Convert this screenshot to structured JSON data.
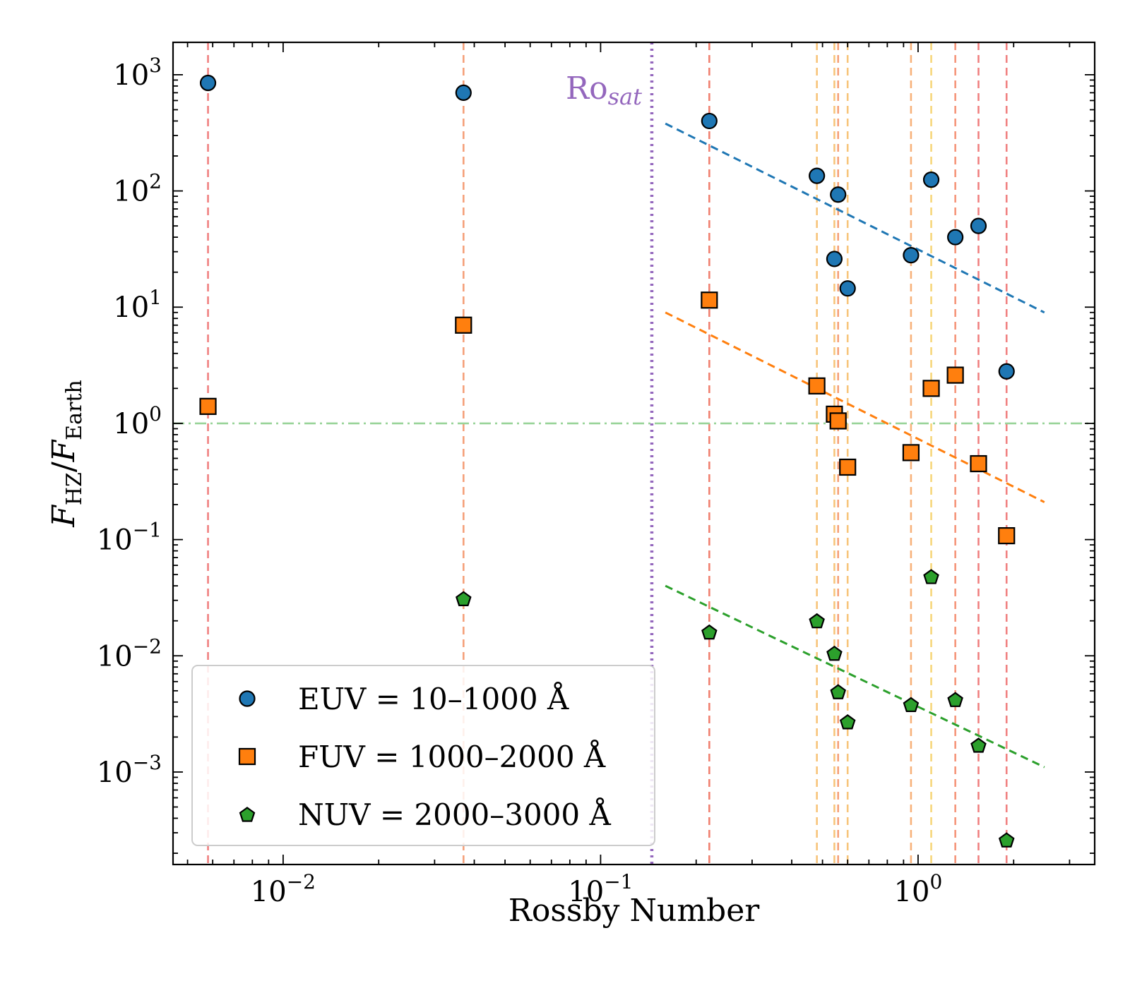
{
  "chart_data": {
    "type": "scatter",
    "xlabel": "Rossby Number",
    "ylabel": {
      "main": "F",
      "sub1": "HZ",
      "sep": "/",
      "main2": "F",
      "sub2": "Earth"
    },
    "xscale": "log",
    "yscale": "log",
    "xlim": [
      0.0045,
      3.6
    ],
    "ylim": [
      0.00016,
      1900
    ],
    "x_ticks": [
      {
        "value": 0.01,
        "base": "10",
        "exp": "−2"
      },
      {
        "value": 0.1,
        "base": "10",
        "exp": "−1"
      },
      {
        "value": 1,
        "base": "10",
        "exp": "0"
      }
    ],
    "y_ticks": [
      {
        "value": 0.001,
        "base": "10",
        "exp": "−3"
      },
      {
        "value": 0.01,
        "base": "10",
        "exp": "−2"
      },
      {
        "value": 0.1,
        "base": "10",
        "exp": "−1"
      },
      {
        "value": 1,
        "base": "10",
        "exp": "0"
      },
      {
        "value": 10,
        "base": "10",
        "exp": "1"
      },
      {
        "value": 100,
        "base": "10",
        "exp": "2"
      },
      {
        "value": 1000,
        "base": "10",
        "exp": "3"
      }
    ],
    "series": [
      {
        "name": "EUV = 10–1000 Å",
        "marker": "circle",
        "color": "#1f77b4",
        "points": [
          [
            0.0058,
            850
          ],
          [
            0.037,
            700
          ],
          [
            0.22,
            400
          ],
          [
            0.48,
            135
          ],
          [
            0.56,
            93
          ],
          [
            0.545,
            26
          ],
          [
            0.6,
            14.5
          ],
          [
            0.95,
            28
          ],
          [
            1.1,
            125
          ],
          [
            1.31,
            40
          ],
          [
            1.55,
            50
          ],
          [
            1.9,
            2.8
          ]
        ],
        "fit": {
          "x": [
            0.16,
            2.5
          ],
          "y": [
            380,
            9
          ]
        }
      },
      {
        "name": "FUV = 1000–2000 Å",
        "marker": "square",
        "color": "#ff7f0e",
        "points": [
          [
            0.0058,
            1.4
          ],
          [
            0.037,
            7.0
          ],
          [
            0.22,
            11.5
          ],
          [
            0.48,
            2.1
          ],
          [
            0.545,
            1.2
          ],
          [
            0.56,
            1.05
          ],
          [
            0.6,
            0.42
          ],
          [
            0.95,
            0.56
          ],
          [
            1.1,
            2.0
          ],
          [
            1.31,
            2.6
          ],
          [
            1.55,
            0.45
          ],
          [
            1.9,
            0.108
          ]
        ],
        "fit": {
          "x": [
            0.16,
            2.5
          ],
          "y": [
            9,
            0.21
          ]
        }
      },
      {
        "name": "NUV = 2000–3000 Å",
        "marker": "pentagon",
        "color": "#2ca02c",
        "points": [
          [
            0.037,
            0.031
          ],
          [
            0.22,
            0.016
          ],
          [
            0.48,
            0.02
          ],
          [
            0.545,
            0.0105
          ],
          [
            0.56,
            0.0049
          ],
          [
            0.6,
            0.0027
          ],
          [
            0.95,
            0.0038
          ],
          [
            1.1,
            0.048
          ],
          [
            1.31,
            0.0042
          ],
          [
            1.55,
            0.0017
          ],
          [
            1.9,
            0.00026
          ]
        ],
        "fit": {
          "x": [
            0.16,
            2.5
          ],
          "y": [
            0.04,
            0.0011
          ]
        }
      }
    ],
    "vertical_lines": [
      {
        "x": 0.0058,
        "color": "#f08080"
      },
      {
        "x": 0.037,
        "color": "#f5a07a"
      },
      {
        "x": 0.22,
        "color": "#f08070"
      },
      {
        "x": 0.48,
        "color": "#f7c47a"
      },
      {
        "x": 0.545,
        "color": "#f7c47a"
      },
      {
        "x": 0.56,
        "color": "#f5a07a"
      },
      {
        "x": 0.6,
        "color": "#f7c47a"
      },
      {
        "x": 0.95,
        "color": "#f7b27a"
      },
      {
        "x": 1.1,
        "color": "#f7d67a"
      },
      {
        "x": 1.31,
        "color": "#f5957a"
      },
      {
        "x": 1.55,
        "color": "#f08080"
      },
      {
        "x": 1.9,
        "color": "#f08080"
      }
    ],
    "saturation_line": {
      "x": 0.145,
      "color": "#9467bd",
      "label_main": "Ro",
      "label_sub": "sat"
    },
    "reference_hline": {
      "y": 1.0,
      "color": "#98d498"
    },
    "legend": {
      "position": "lower-left"
    },
    "grid": false
  }
}
